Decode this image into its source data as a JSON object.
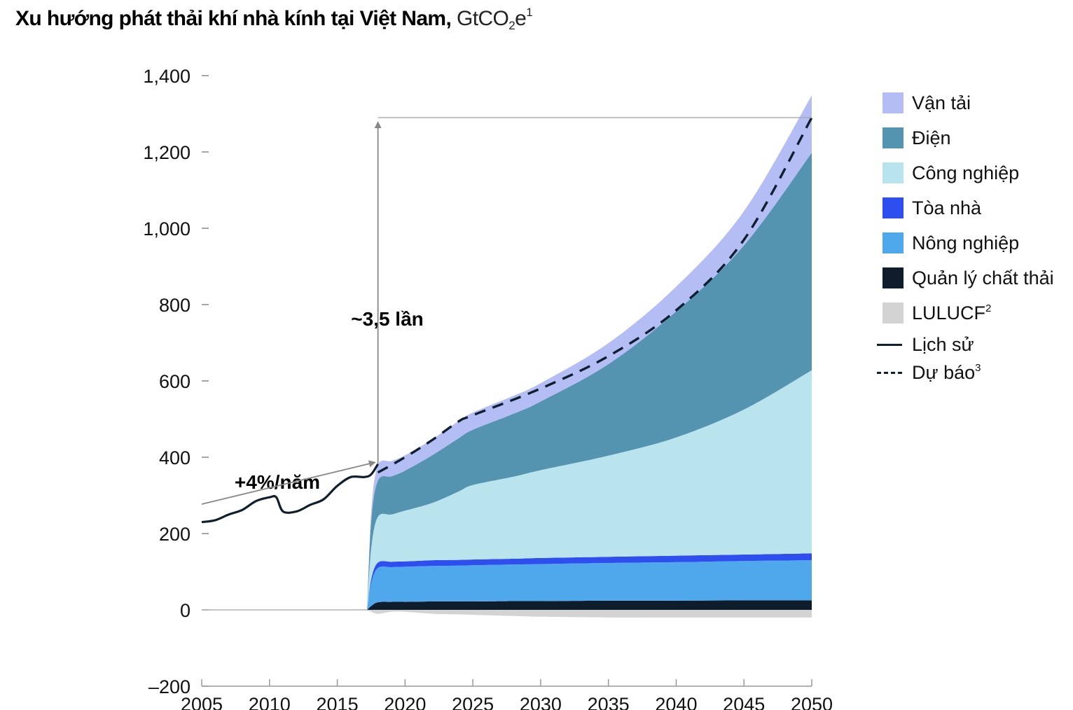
{
  "title": {
    "bold": "Xu hướng phát thải khí nhà kính tại Việt Nam,",
    "unit_main": "GtCO",
    "unit_sub": "2",
    "unit_e": "e",
    "unit_sup": "1"
  },
  "legend": [
    {
      "label": "Vận tải",
      "color": "#b4bdf4",
      "kind": "box"
    },
    {
      "label": "Điện",
      "color": "#5594b1",
      "kind": "box"
    },
    {
      "label": "Công nghiệp",
      "color": "#b9e4ee",
      "kind": "box"
    },
    {
      "label": "Tòa nhà",
      "color": "#2f4ef0",
      "kind": "box"
    },
    {
      "label": "Nông nghiệp",
      "color": "#4fa8ec",
      "kind": "box"
    },
    {
      "label": "Quản lý chất thải",
      "color": "#0e1c2c",
      "kind": "box"
    },
    {
      "label": "LULUCF",
      "sup": "2",
      "color": "#d3d3d3",
      "kind": "box"
    },
    {
      "label": "Lịch sử",
      "color": "#0f1f30",
      "kind": "line"
    },
    {
      "label": "Dự báo",
      "sup": "3",
      "color": "#0f1f30",
      "kind": "dash"
    }
  ],
  "annotations": {
    "growth_total": "~3,5 lần",
    "growth_rate": "+4%/năm"
  },
  "chart_data": {
    "type": "area",
    "xlim": [
      2005,
      2050
    ],
    "ylim": [
      -200,
      1400
    ],
    "x_ticks": [
      2005,
      2010,
      2015,
      2020,
      2025,
      2030,
      2035,
      2040,
      2045,
      2050
    ],
    "x_tick_labels": [
      "2005",
      "2010",
      "2015",
      "2020",
      "2025",
      "2030",
      "2035",
      "2040",
      "2045",
      "2050"
    ],
    "y_ticks": [
      -200,
      0,
      200,
      400,
      600,
      800,
      1000,
      1200,
      1400
    ],
    "y_tick_labels": [
      "–200",
      "0",
      "200",
      "400",
      "600",
      "800",
      "1,000",
      "1,200",
      "1,400"
    ],
    "history": {
      "name": "Lịch sử",
      "x": [
        2005,
        2006,
        2007,
        2008,
        2009,
        2010,
        2010.5,
        2011,
        2012,
        2013,
        2014,
        2015,
        2016,
        2017,
        2017.5,
        2018
      ],
      "y": [
        230,
        235,
        250,
        262,
        285,
        295,
        295,
        258,
        258,
        275,
        290,
        325,
        348,
        348,
        355,
        382
      ]
    },
    "forecast": {
      "name": "Dự báo",
      "x": [
        2018,
        2020,
        2022,
        2024,
        2025,
        2030,
        2035,
        2040,
        2045,
        2050
      ],
      "y": [
        360,
        400,
        445,
        495,
        510,
        580,
        665,
        785,
        970,
        1290
      ]
    },
    "stack": {
      "x": [
        2017.2,
        2017.5,
        2018,
        2019,
        2020,
        2022,
        2024,
        2025,
        2028,
        2030,
        2035,
        2040,
        2045,
        2050
      ],
      "lulucf": [
        0,
        -5,
        -10,
        -5,
        -5,
        -10,
        -12,
        -13,
        -16,
        -18,
        -20,
        -20,
        -20,
        -20
      ],
      "series": [
        {
          "name": "Quản lý chất thải",
          "color": "#0e1c2c",
          "values": [
            0,
            10,
            20,
            21,
            21,
            22,
            22,
            22,
            23,
            23,
            24,
            24,
            25,
            25
          ]
        },
        {
          "name": "Nông nghiệp",
          "color": "#4fa8ec",
          "values": [
            0,
            60,
            90,
            91,
            92,
            93,
            94,
            95,
            96,
            97,
            99,
            101,
            103,
            105
          ]
        },
        {
          "name": "Tòa nhà",
          "color": "#2f4ef0",
          "values": [
            0,
            10,
            14,
            14,
            14,
            15,
            15,
            15,
            15,
            16,
            16,
            17,
            17,
            18
          ]
        },
        {
          "name": "Công nghiệp",
          "color": "#b9e4ee",
          "values": [
            0,
            80,
            120,
            124,
            133,
            150,
            180,
            195,
            215,
            230,
            265,
            310,
            380,
            480
          ]
        },
        {
          "name": "Điện",
          "color": "#5594b1",
          "values": [
            0,
            70,
            95,
            100,
            105,
            125,
            140,
            145,
            165,
            180,
            240,
            330,
            430,
            570
          ]
        },
        {
          "name": "Vận tải",
          "color": "#b4bdf4",
          "values": [
            0,
            25,
            40,
            40,
            40,
            42,
            45,
            45,
            47,
            48,
            55,
            65,
            90,
            150
          ]
        }
      ]
    }
  }
}
